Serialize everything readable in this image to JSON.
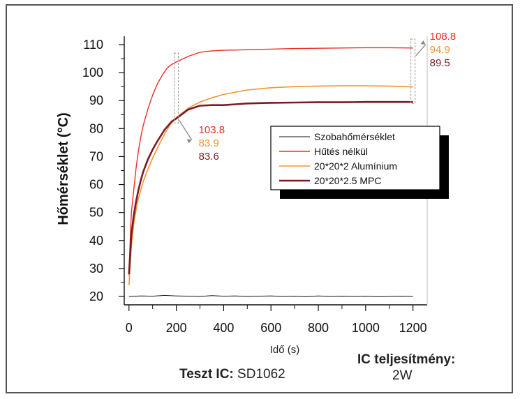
{
  "chart_data": {
    "type": "line",
    "xlabel": "Idő (s)",
    "ylabel": "Hőmérséklet (°C)",
    "xlim": [
      -20,
      1260
    ],
    "ylim": [
      17,
      113
    ],
    "xticks": [
      "0",
      "200",
      "400",
      "600",
      "800",
      "1000",
      "1200"
    ],
    "yticks": [
      "20",
      "30",
      "40",
      "50",
      "60",
      "70",
      "80",
      "90",
      "100",
      "110"
    ],
    "legend_position": "right",
    "series": [
      {
        "name": "Szobahőmérséklet",
        "color": "#111111",
        "x": [
          0,
          50,
          100,
          150,
          200,
          250,
          300,
          350,
          400,
          450,
          500,
          550,
          600,
          650,
          700,
          750,
          800,
          850,
          900,
          950,
          1000,
          1050,
          1100,
          1150,
          1200
        ],
        "y": [
          20,
          20.2,
          20.1,
          20.4,
          20.2,
          20.1,
          20.0,
          20.3,
          20.1,
          20.2,
          20.0,
          20.1,
          20.2,
          20.0,
          20.1,
          19.9,
          20.2,
          20.0,
          20.1,
          20.0,
          20.1,
          19.9,
          20.0,
          20.1,
          20.0
        ]
      },
      {
        "name": "Hűtés nélkül",
        "color": "#ee2b24",
        "x": [
          0,
          5,
          10,
          20,
          30,
          40,
          50,
          60,
          80,
          100,
          120,
          140,
          160,
          180,
          200,
          250,
          300,
          350,
          400,
          500,
          600,
          700,
          800,
          900,
          1000,
          1100,
          1200
        ],
        "y": [
          27.5,
          40,
          50,
          58,
          66,
          72,
          77,
          81,
          87,
          92,
          96,
          99,
          101.5,
          102.9,
          103.8,
          105.8,
          107.3,
          107.8,
          108.0,
          108.2,
          108.4,
          108.6,
          108.7,
          108.8,
          108.9,
          108.9,
          108.8
        ]
      },
      {
        "name": "20*20*2 Alumínium",
        "color": "#f5922e",
        "x": [
          0,
          10,
          20,
          30,
          40,
          50,
          60,
          80,
          100,
          120,
          150,
          175,
          200,
          250,
          300,
          350,
          400,
          500,
          600,
          700,
          800,
          900,
          1000,
          1100,
          1200
        ],
        "y": [
          24,
          38,
          46,
          51,
          55,
          58,
          61,
          65.5,
          69.5,
          73,
          78,
          81.5,
          83.9,
          87.3,
          89.5,
          91,
          92.2,
          93.8,
          94.6,
          95.0,
          95.2,
          95.3,
          95.3,
          95.2,
          94.9
        ]
      },
      {
        "name": "20*20*2.5 MPC",
        "color": "#7b1b24",
        "x": [
          0,
          10,
          20,
          30,
          40,
          50,
          60,
          80,
          100,
          120,
          150,
          180,
          200,
          250,
          300,
          350,
          400,
          450,
          500,
          600,
          700,
          800,
          900,
          1000,
          1100,
          1200
        ],
        "y": [
          28,
          42,
          49,
          54,
          58,
          61.5,
          64.5,
          69,
          72.5,
          75.5,
          79.5,
          82.5,
          83.6,
          86.8,
          88.2,
          88.4,
          88.4,
          88.7,
          89.0,
          89.2,
          89.3,
          89.4,
          89.4,
          89.5,
          89.5,
          89.5
        ]
      }
    ],
    "annotations": [
      {
        "x": 200,
        "labels": [
          "103.8",
          "83.9",
          "83.6"
        ]
      },
      {
        "x": 1200,
        "labels": [
          "108.8",
          "94.9",
          "89.5"
        ]
      }
    ]
  },
  "footer": {
    "test_ic_label": "Teszt IC:",
    "test_ic_value": "SD1062",
    "power_label": "IC teljesítmény:",
    "power_value": "2W"
  }
}
